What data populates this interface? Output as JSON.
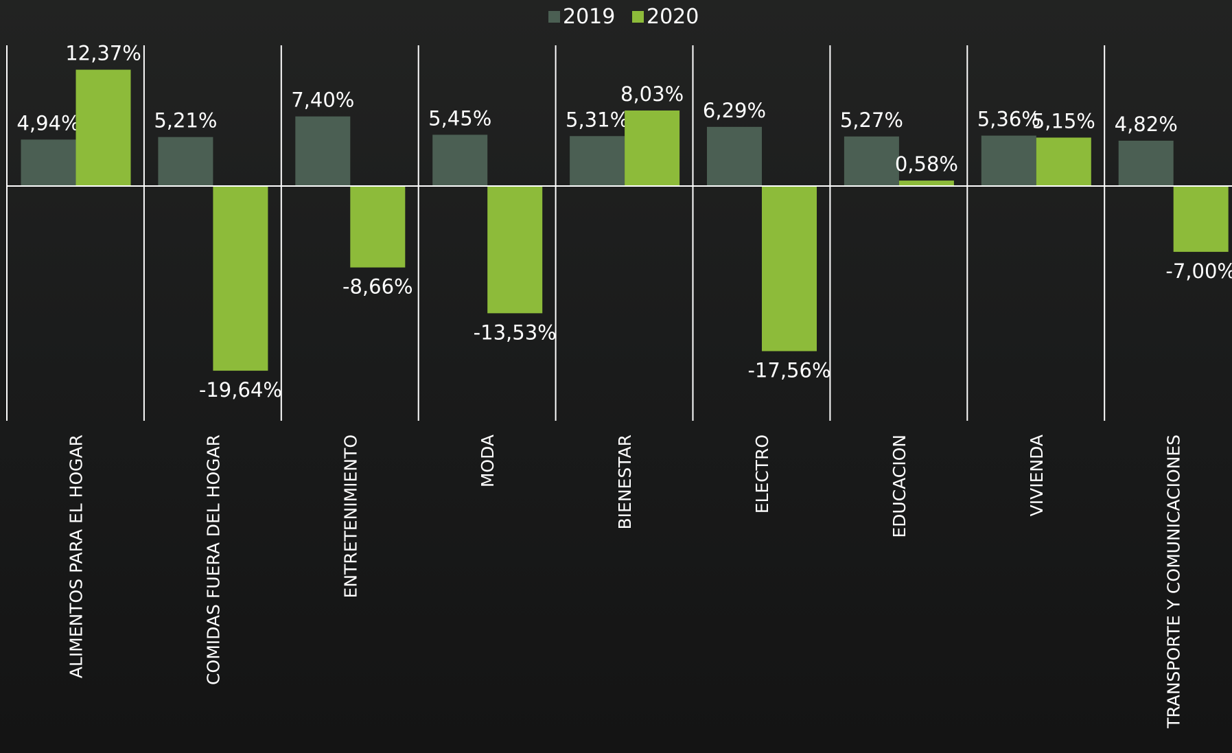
{
  "chart_data": {
    "type": "bar",
    "categories": [
      "ALIMENTOS PARA EL HOGAR",
      "COMIDAS FUERA DEL HOGAR",
      "ENTRETENIMIENTO",
      "MODA",
      "BIENESTAR",
      "ELECTRO",
      "EDUCACION",
      "VIVIENDA",
      "TRANSPORTE Y COMUNICACIONES"
    ],
    "series": [
      {
        "name": "2019",
        "color": "#4b5f53",
        "values": [
          4.94,
          5.21,
          7.4,
          5.45,
          5.31,
          6.29,
          5.27,
          5.36,
          4.82
        ],
        "value_labels": [
          "4,94%",
          "5,21%",
          "7,40%",
          "5,45%",
          "5,31%",
          "6,29%",
          "5,27%",
          "5,36%",
          "4,82%"
        ]
      },
      {
        "name": "2020",
        "color": "#8dbb3a",
        "values": [
          12.37,
          -19.64,
          -8.66,
          -13.53,
          8.03,
          -17.56,
          0.58,
          5.15,
          -7.0
        ],
        "value_labels": [
          "12,37%",
          "-19,64%",
          "-8,66%",
          "-13,53%",
          "8,03%",
          "-17,56%",
          "0,58%",
          "5,15%",
          "-7,00%"
        ]
      }
    ],
    "legend": "top"
  }
}
